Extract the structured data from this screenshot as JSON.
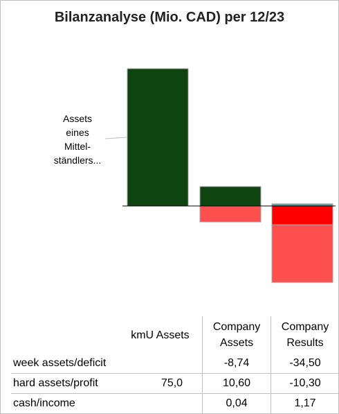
{
  "title": "Bilanzanalyse (Mio. CAD) per 12/23",
  "annotation": {
    "lines": [
      "Assets",
      "eines",
      "Mittel-",
      "ständlers..."
    ]
  },
  "colors": {
    "assets_green": "#0e4410",
    "deficit_red": "#ff0000",
    "loss_light_red": "#ff5050",
    "cash_teal": "#5f9ea0"
  },
  "table": {
    "headers": [
      "",
      "kmU Assets",
      "Company\nAssets",
      "Company\nResults"
    ],
    "rows": [
      {
        "label": "week assets/deficit",
        "values": [
          "",
          "-8,74",
          "-34,50"
        ]
      },
      {
        "label": "hard assets/profit",
        "values": [
          "75,0",
          "10,60",
          "-10,30"
        ]
      },
      {
        "label": "cash/income",
        "values": [
          "",
          "0,04",
          "1,17"
        ]
      }
    ]
  },
  "chart_data": {
    "type": "bar",
    "stacked": true,
    "categories": [
      "kmU Assets",
      "Company Assets",
      "Company Results"
    ],
    "series": [
      {
        "name": "week assets/deficit",
        "values": [
          null,
          -8.74,
          -34.5
        ],
        "color": "#ff5050"
      },
      {
        "name": "hard assets/profit",
        "values": [
          75.0,
          10.6,
          -10.3
        ],
        "color_positive": "#0e4410",
        "color_negative": "#ff0000"
      },
      {
        "name": "cash/income",
        "values": [
          null,
          0.04,
          1.17
        ],
        "color": "#5f9ea0"
      }
    ],
    "title": "Bilanzanalyse (Mio. CAD) per 12/23",
    "xlabel": "",
    "ylabel": "",
    "grid": false,
    "legend": "none"
  }
}
